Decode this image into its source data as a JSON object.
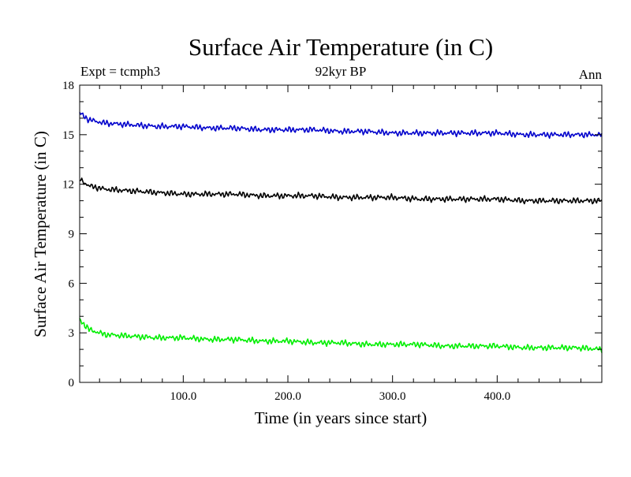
{
  "chart_data": {
    "type": "line",
    "title": "Surface Air Temperature (in C)",
    "subtitle_left": "Expt = tcmph3",
    "subtitle_center": "92kyr BP",
    "subtitle_right": "Ann",
    "xlabel": "Time (in years since start)",
    "ylabel": "Surface Air Temperature (in C)",
    "xlim": [
      1,
      500
    ],
    "ylim": [
      0,
      18
    ],
    "x_ticks": [
      100,
      200,
      300,
      400
    ],
    "x_tick_labels": [
      "100.0",
      "200.0",
      "300.0",
      "400.0"
    ],
    "y_ticks": [
      0,
      3,
      6,
      9,
      12,
      15,
      18
    ],
    "y_tick_labels": [
      "0",
      "3",
      "6",
      "9",
      "12",
      "15",
      "18"
    ],
    "grid": false,
    "legend": "none",
    "series": [
      {
        "color": "#0000cc",
        "x": [
          1,
          10,
          25,
          50,
          75,
          100,
          125,
          150,
          175,
          200,
          225,
          250,
          275,
          300,
          325,
          350,
          375,
          400,
          425,
          450,
          475,
          500
        ],
        "values": [
          16.3,
          15.9,
          15.7,
          15.6,
          15.5,
          15.5,
          15.4,
          15.4,
          15.3,
          15.3,
          15.3,
          15.2,
          15.2,
          15.1,
          15.1,
          15.1,
          15.1,
          15.1,
          15.0,
          15.0,
          15.0,
          15.0
        ]
      },
      {
        "color": "#000000",
        "x": [
          1,
          10,
          25,
          50,
          75,
          100,
          125,
          150,
          175,
          200,
          225,
          250,
          275,
          300,
          325,
          350,
          375,
          400,
          425,
          450,
          475,
          500
        ],
        "values": [
          12.3,
          11.9,
          11.7,
          11.6,
          11.5,
          11.4,
          11.4,
          11.4,
          11.3,
          11.3,
          11.3,
          11.2,
          11.2,
          11.2,
          11.1,
          11.1,
          11.1,
          11.1,
          11.0,
          11.0,
          11.0,
          11.0
        ]
      },
      {
        "color": "#00ee00",
        "x": [
          1,
          10,
          25,
          50,
          75,
          100,
          125,
          150,
          175,
          200,
          225,
          250,
          275,
          300,
          325,
          350,
          375,
          400,
          425,
          450,
          475,
          500
        ],
        "values": [
          3.8,
          3.2,
          2.9,
          2.8,
          2.7,
          2.7,
          2.6,
          2.6,
          2.5,
          2.5,
          2.4,
          2.4,
          2.3,
          2.3,
          2.3,
          2.2,
          2.2,
          2.2,
          2.1,
          2.1,
          2.1,
          2.0
        ]
      }
    ]
  }
}
